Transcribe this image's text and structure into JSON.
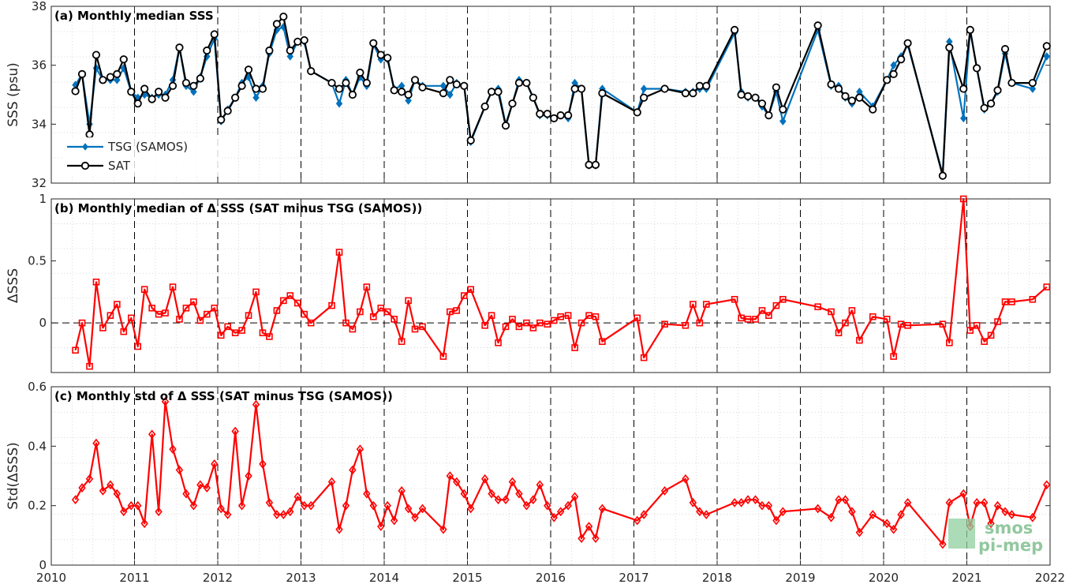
{
  "logo": {
    "line1": "smos",
    "line2": "pi-mep"
  },
  "chart_data": [
    {
      "panel": "a",
      "type": "line",
      "title": "(a) Monthly median SSS",
      "xlabel": "",
      "ylabel": "SSS (psu)",
      "xlim": [
        2010,
        2022
      ],
      "ylim": [
        32,
        38
      ],
      "yticks": [
        32,
        34,
        36,
        38
      ],
      "legend_position": "bottom-left",
      "grid": true,
      "x": [
        2010.29,
        2010.37,
        2010.46,
        2010.54,
        2010.62,
        2010.71,
        2010.79,
        2010.87,
        2010.96,
        2011.04,
        2011.12,
        2011.21,
        2011.29,
        2011.37,
        2011.46,
        2011.54,
        2011.62,
        2011.71,
        2011.79,
        2011.87,
        2011.96,
        2012.04,
        2012.12,
        2012.21,
        2012.29,
        2012.37,
        2012.46,
        2012.54,
        2012.62,
        2012.71,
        2012.79,
        2012.87,
        2012.96,
        2013.04,
        2013.12,
        2013.37,
        2013.46,
        2013.54,
        2013.62,
        2013.71,
        2013.79,
        2013.87,
        2013.96,
        2014.04,
        2014.12,
        2014.21,
        2014.29,
        2014.37,
        2014.46,
        2014.71,
        2014.79,
        2014.87,
        2014.96,
        2015.04,
        2015.21,
        2015.29,
        2015.37,
        2015.46,
        2015.54,
        2015.62,
        2015.71,
        2015.79,
        2015.87,
        2015.96,
        2016.04,
        2016.12,
        2016.21,
        2016.29,
        2016.37,
        2016.46,
        2016.54,
        2016.62,
        2017.04,
        2017.12,
        2017.37,
        2017.62,
        2017.71,
        2017.79,
        2017.87,
        2018.21,
        2018.29,
        2018.37,
        2018.46,
        2018.54,
        2018.62,
        2018.71,
        2018.79,
        2019.21,
        2019.37,
        2019.46,
        2019.54,
        2019.62,
        2019.71,
        2019.87,
        2020.04,
        2020.12,
        2020.21,
        2020.29,
        2020.71,
        2020.79,
        2020.96,
        2021.04,
        2021.12,
        2021.21,
        2021.29,
        2021.37,
        2021.46,
        2021.54,
        2021.79,
        2021.96
      ],
      "series": [
        {
          "name": "TSG (SAMOS)",
          "color": "#0072bd",
          "marker": "diamond",
          "values": [
            35.33,
            35.7,
            34.0,
            35.9,
            35.5,
            35.5,
            35.5,
            35.9,
            35.1,
            34.9,
            35.0,
            34.9,
            35.0,
            35.0,
            35.5,
            36.6,
            35.3,
            35.1,
            35.6,
            36.3,
            36.9,
            34.1,
            34.5,
            34.9,
            35.4,
            35.6,
            34.9,
            35.3,
            36.4,
            37.2,
            37.3,
            36.3,
            36.8,
            36.8,
            35.8,
            35.4,
            34.7,
            35.5,
            35.0,
            35.6,
            35.3,
            36.7,
            36.2,
            36.2,
            35.2,
            35.3,
            34.8,
            35.5,
            35.3,
            35.3,
            35.0,
            35.4,
            35.3,
            33.4,
            34.6,
            35.1,
            35.2,
            34.0,
            34.7,
            35.5,
            35.4,
            34.9,
            34.3,
            34.3,
            34.2,
            34.3,
            34.2,
            35.4,
            35.2,
            32.6,
            32.6,
            35.2,
            34.4,
            35.2,
            35.2,
            35.1,
            35.1,
            35.2,
            35.2,
            37.1,
            35.1,
            34.9,
            34.9,
            34.6,
            34.3,
            35.1,
            34.1,
            37.2,
            35.3,
            35.3,
            34.9,
            34.7,
            35.1,
            34.6,
            35.5,
            36.0,
            36.3,
            36.7,
            32.3,
            36.8,
            34.2,
            37.2,
            35.9,
            34.5,
            34.7,
            35.1,
            36.4,
            35.4,
            35.2,
            36.3
          ]
        },
        {
          "name": "SAT",
          "color": "#000000",
          "marker": "circle",
          "values": [
            35.12,
            35.7,
            33.65,
            36.35,
            35.5,
            35.6,
            35.7,
            36.2,
            35.1,
            34.7,
            35.2,
            34.85,
            35.1,
            34.9,
            35.3,
            36.6,
            35.4,
            35.3,
            35.55,
            36.5,
            37.05,
            34.15,
            34.45,
            34.9,
            35.3,
            35.85,
            35.2,
            35.2,
            36.5,
            37.4,
            37.65,
            36.5,
            36.8,
            36.85,
            35.8,
            35.4,
            35.2,
            35.4,
            35.0,
            35.75,
            35.4,
            36.75,
            36.35,
            36.25,
            35.15,
            35.1,
            35.0,
            35.5,
            35.25,
            35.05,
            35.5,
            35.35,
            35.3,
            33.45,
            34.6,
            35.1,
            35.1,
            33.95,
            34.7,
            35.4,
            35.4,
            34.9,
            34.35,
            34.35,
            34.2,
            34.3,
            34.3,
            35.2,
            35.2,
            32.62,
            32.62,
            35.05,
            34.4,
            34.9,
            35.2,
            35.05,
            35.05,
            35.3,
            35.3,
            37.2,
            35.0,
            34.95,
            34.9,
            34.7,
            34.3,
            35.25,
            34.5,
            37.35,
            35.35,
            35.2,
            34.95,
            34.8,
            34.9,
            34.5,
            35.5,
            35.7,
            36.2,
            36.75,
            32.25,
            36.6,
            35.2,
            37.2,
            35.9,
            34.55,
            34.7,
            35.15,
            36.55,
            35.4,
            35.4,
            36.65
          ]
        }
      ]
    },
    {
      "panel": "b",
      "type": "line",
      "title": "(b) Monthly median of Δ SSS (SAT minus TSG (SAMOS))",
      "xlabel": "",
      "ylabel": "ΔSSS",
      "xlim": [
        2010,
        2022
      ],
      "ylim": [
        -0.4,
        1.0
      ],
      "yticks": [
        0,
        0.5,
        1
      ],
      "grid": true,
      "zero_line": true,
      "series": [
        {
          "name": "",
          "color": "#ff0000",
          "marker": "square",
          "x": [
            2010.29,
            2010.37,
            2010.46,
            2010.54,
            2010.62,
            2010.71,
            2010.79,
            2010.87,
            2010.96,
            2011.04,
            2011.12,
            2011.21,
            2011.29,
            2011.37,
            2011.46,
            2011.54,
            2011.62,
            2011.71,
            2011.79,
            2011.87,
            2011.96,
            2012.04,
            2012.12,
            2012.21,
            2012.29,
            2012.37,
            2012.46,
            2012.54,
            2012.62,
            2012.71,
            2012.79,
            2012.87,
            2012.96,
            2013.04,
            2013.12,
            2013.37,
            2013.46,
            2013.54,
            2013.62,
            2013.71,
            2013.79,
            2013.87,
            2013.96,
            2014.04,
            2014.12,
            2014.21,
            2014.29,
            2014.37,
            2014.46,
            2014.71,
            2014.79,
            2014.87,
            2014.96,
            2015.04,
            2015.21,
            2015.29,
            2015.37,
            2015.46,
            2015.54,
            2015.62,
            2015.71,
            2015.79,
            2015.87,
            2015.96,
            2016.04,
            2016.12,
            2016.21,
            2016.29,
            2016.37,
            2016.46,
            2016.54,
            2016.62,
            2017.04,
            2017.12,
            2017.37,
            2017.62,
            2017.71,
            2017.79,
            2017.87,
            2018.21,
            2018.29,
            2018.37,
            2018.46,
            2018.54,
            2018.62,
            2018.71,
            2018.79,
            2019.21,
            2019.37,
            2019.46,
            2019.54,
            2019.62,
            2019.71,
            2019.87,
            2020.04,
            2020.12,
            2020.21,
            2020.29,
            2020.71,
            2020.79,
            2020.96,
            2021.04,
            2021.12,
            2021.21,
            2021.29,
            2021.37,
            2021.46,
            2021.54,
            2021.79,
            2021.96
          ],
          "values": [
            -0.22,
            0.0,
            -0.35,
            0.33,
            -0.04,
            0.06,
            0.15,
            -0.07,
            0.04,
            -0.19,
            0.27,
            0.12,
            0.07,
            0.08,
            0.29,
            0.03,
            0.12,
            0.17,
            0.02,
            0.07,
            0.12,
            -0.1,
            -0.03,
            -0.08,
            -0.06,
            0.06,
            0.25,
            -0.08,
            -0.11,
            0.1,
            0.18,
            0.22,
            0.16,
            0.07,
            0.0,
            0.14,
            0.57,
            0.0,
            -0.05,
            0.09,
            0.29,
            0.05,
            0.12,
            0.09,
            0.03,
            -0.15,
            0.18,
            -0.05,
            -0.03,
            -0.27,
            0.09,
            0.1,
            0.22,
            0.27,
            -0.02,
            0.06,
            -0.16,
            -0.03,
            0.03,
            -0.03,
            0.0,
            -0.04,
            0.0,
            -0.01,
            0.02,
            0.05,
            0.06,
            -0.2,
            0.0,
            0.06,
            0.05,
            -0.15,
            0.04,
            -0.28,
            -0.01,
            -0.02,
            0.15,
            0.0,
            0.15,
            0.19,
            0.04,
            0.03,
            0.03,
            0.1,
            0.06,
            0.14,
            0.19,
            0.13,
            0.09,
            -0.08,
            0.0,
            0.1,
            -0.14,
            0.05,
            0.03,
            -0.27,
            -0.01,
            -0.02,
            -0.01,
            -0.16,
            1.0,
            -0.06,
            -0.02,
            -0.15,
            -0.1,
            0.01,
            0.17,
            0.17,
            0.19,
            0.29
          ]
        }
      ]
    },
    {
      "panel": "c",
      "type": "line",
      "title": "(c) Monthly std of Δ SSS (SAT minus TSG (SAMOS))",
      "xlabel": "",
      "ylabel": "Std(ΔSSS)",
      "xlim": [
        2010,
        2022
      ],
      "ylim": [
        0,
        0.6
      ],
      "yticks": [
        0,
        0.2,
        0.4,
        0.6
      ],
      "xticks": [
        2010,
        2011,
        2012,
        2013,
        2014,
        2015,
        2016,
        2017,
        2018,
        2019,
        2020,
        2021,
        2022
      ],
      "grid": true,
      "series": [
        {
          "name": "",
          "color": "#ff0000",
          "marker": "diamond",
          "x": [
            2010.29,
            2010.37,
            2010.46,
            2010.54,
            2010.62,
            2010.71,
            2010.79,
            2010.87,
            2010.96,
            2011.04,
            2011.12,
            2011.21,
            2011.29,
            2011.37,
            2011.46,
            2011.54,
            2011.62,
            2011.71,
            2011.79,
            2011.87,
            2011.96,
            2012.04,
            2012.12,
            2012.21,
            2012.29,
            2012.37,
            2012.46,
            2012.54,
            2012.62,
            2012.71,
            2012.79,
            2012.87,
            2012.96,
            2013.04,
            2013.12,
            2013.37,
            2013.46,
            2013.54,
            2013.62,
            2013.71,
            2013.79,
            2013.87,
            2013.96,
            2014.04,
            2014.12,
            2014.21,
            2014.29,
            2014.37,
            2014.46,
            2014.71,
            2014.79,
            2014.87,
            2014.96,
            2015.04,
            2015.21,
            2015.29,
            2015.37,
            2015.46,
            2015.54,
            2015.62,
            2015.71,
            2015.79,
            2015.87,
            2015.96,
            2016.04,
            2016.12,
            2016.21,
            2016.29,
            2016.37,
            2016.46,
            2016.54,
            2016.62,
            2017.04,
            2017.12,
            2017.37,
            2017.62,
            2017.71,
            2017.79,
            2017.87,
            2018.21,
            2018.29,
            2018.37,
            2018.46,
            2018.54,
            2018.62,
            2018.71,
            2018.79,
            2019.21,
            2019.37,
            2019.46,
            2019.54,
            2019.62,
            2019.71,
            2019.87,
            2020.04,
            2020.12,
            2020.21,
            2020.29,
            2020.71,
            2020.79,
            2020.96,
            2021.04,
            2021.12,
            2021.21,
            2021.29,
            2021.37,
            2021.46,
            2021.54,
            2021.79,
            2021.96
          ],
          "values": [
            0.22,
            0.26,
            0.29,
            0.41,
            0.25,
            0.27,
            0.24,
            0.18,
            0.2,
            0.2,
            0.14,
            0.44,
            0.18,
            0.55,
            0.39,
            0.32,
            0.24,
            0.2,
            0.27,
            0.26,
            0.34,
            0.19,
            0.17,
            0.45,
            0.2,
            0.3,
            0.54,
            0.34,
            0.21,
            0.17,
            0.17,
            0.18,
            0.23,
            0.2,
            0.2,
            0.28,
            0.12,
            0.2,
            0.32,
            0.39,
            0.24,
            0.2,
            0.13,
            0.2,
            0.15,
            0.25,
            0.19,
            0.16,
            0.19,
            0.12,
            0.3,
            0.28,
            0.24,
            0.19,
            0.29,
            0.24,
            0.22,
            0.22,
            0.28,
            0.24,
            0.2,
            0.22,
            0.27,
            0.2,
            0.16,
            0.18,
            0.2,
            0.23,
            0.09,
            0.13,
            0.09,
            0.19,
            0.15,
            0.17,
            0.25,
            0.29,
            0.21,
            0.18,
            0.17,
            0.21,
            0.21,
            0.22,
            0.22,
            0.2,
            0.2,
            0.15,
            0.18,
            0.19,
            0.16,
            0.22,
            0.22,
            0.18,
            0.11,
            0.17,
            0.14,
            0.12,
            0.17,
            0.21,
            0.07,
            0.21,
            0.24,
            0.13,
            0.21,
            0.21,
            0.14,
            0.2,
            0.18,
            0.17,
            0.16,
            0.27
          ]
        }
      ]
    }
  ]
}
